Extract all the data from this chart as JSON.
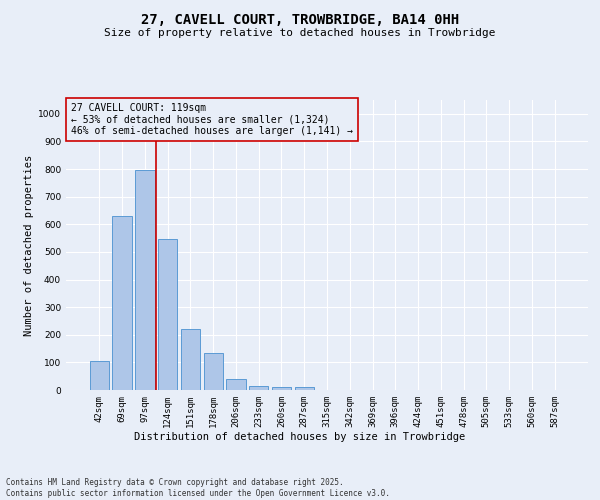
{
  "title_line1": "27, CAVELL COURT, TROWBRIDGE, BA14 0HH",
  "title_line2": "Size of property relative to detached houses in Trowbridge",
  "xlabel": "Distribution of detached houses by size in Trowbridge",
  "ylabel": "Number of detached properties",
  "categories": [
    "42sqm",
    "69sqm",
    "97sqm",
    "124sqm",
    "151sqm",
    "178sqm",
    "206sqm",
    "233sqm",
    "260sqm",
    "287sqm",
    "315sqm",
    "342sqm",
    "369sqm",
    "396sqm",
    "424sqm",
    "451sqm",
    "478sqm",
    "505sqm",
    "533sqm",
    "560sqm",
    "587sqm"
  ],
  "values": [
    105,
    630,
    795,
    545,
    220,
    135,
    40,
    15,
    10,
    10,
    0,
    0,
    0,
    0,
    0,
    0,
    0,
    0,
    0,
    0,
    0
  ],
  "bar_color": "#aec6e8",
  "bar_edge_color": "#5b9bd5",
  "vline_color": "#cc0000",
  "vline_position": 2.5,
  "annotation_box_text": "27 CAVELL COURT: 119sqm\n← 53% of detached houses are smaller (1,324)\n46% of semi-detached houses are larger (1,141) →",
  "annotation_box_color": "#cc0000",
  "ylim": [
    0,
    1050
  ],
  "yticks": [
    0,
    100,
    200,
    300,
    400,
    500,
    600,
    700,
    800,
    900,
    1000
  ],
  "background_color": "#e8eef8",
  "grid_color": "#ffffff",
  "footer_text": "Contains HM Land Registry data © Crown copyright and database right 2025.\nContains public sector information licensed under the Open Government Licence v3.0.",
  "title_fontsize": 10,
  "subtitle_fontsize": 8,
  "axis_label_fontsize": 7.5,
  "tick_fontsize": 6.5,
  "annotation_fontsize": 7,
  "ylabel_fontsize": 7.5,
  "footer_fontsize": 5.5
}
